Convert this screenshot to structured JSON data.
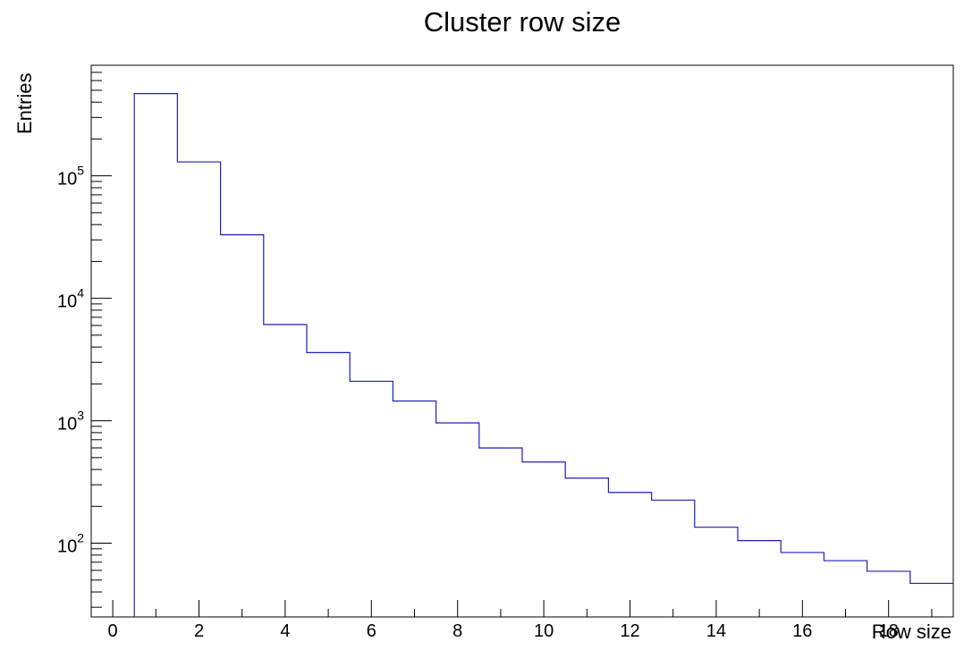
{
  "chart_data": {
    "type": "bar",
    "title": "Cluster row size",
    "xlabel": "Row size",
    "ylabel": "Entries",
    "xlim": [
      -0.5,
      19.5
    ],
    "ylim": [
      25,
      800000
    ],
    "y_scale": "log",
    "grid": false,
    "line_color": "#1f1fb4",
    "x_ticks": [
      "0",
      "2",
      "4",
      "6",
      "8",
      "10",
      "12",
      "14",
      "16",
      "18"
    ],
    "y_ticks": [
      {
        "base": "10",
        "exp": "2"
      },
      {
        "base": "10",
        "exp": "3"
      },
      {
        "base": "10",
        "exp": "4"
      },
      {
        "base": "10",
        "exp": "5"
      }
    ],
    "bins": [
      {
        "low": 0.5,
        "high": 1.5,
        "value": 470000
      },
      {
        "low": 1.5,
        "high": 2.5,
        "value": 130000
      },
      {
        "low": 2.5,
        "high": 3.5,
        "value": 33000
      },
      {
        "low": 3.5,
        "high": 4.5,
        "value": 6100
      },
      {
        "low": 4.5,
        "high": 5.5,
        "value": 3600
      },
      {
        "low": 5.5,
        "high": 6.5,
        "value": 2100
      },
      {
        "low": 6.5,
        "high": 7.5,
        "value": 1450
      },
      {
        "low": 7.5,
        "high": 8.5,
        "value": 960
      },
      {
        "low": 8.5,
        "high": 9.5,
        "value": 600
      },
      {
        "low": 9.5,
        "high": 10.5,
        "value": 460
      },
      {
        "low": 10.5,
        "high": 11.5,
        "value": 340
      },
      {
        "low": 11.5,
        "high": 12.5,
        "value": 260
      },
      {
        "low": 12.5,
        "high": 13.5,
        "value": 225
      },
      {
        "low": 13.5,
        "high": 14.5,
        "value": 135
      },
      {
        "low": 14.5,
        "high": 15.5,
        "value": 105
      },
      {
        "low": 15.5,
        "high": 16.5,
        "value": 84
      },
      {
        "low": 16.5,
        "high": 17.5,
        "value": 72
      },
      {
        "low": 17.5,
        "high": 18.5,
        "value": 59
      },
      {
        "low": 18.5,
        "high": 19.5,
        "value": 47
      }
    ]
  }
}
